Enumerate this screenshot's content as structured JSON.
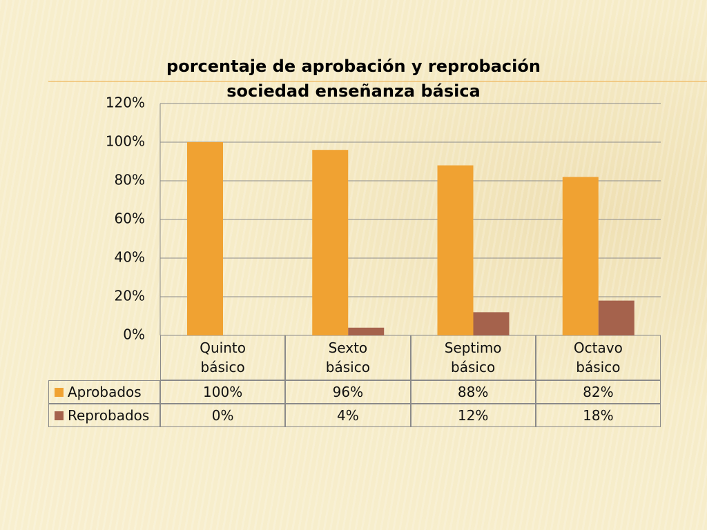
{
  "chart_data": {
    "type": "bar",
    "title": "porcentaje de aprobación y reprobación sociedad enseñanza básica",
    "categories": [
      "Quinto básico",
      "Sexto básico",
      "Septimo básico",
      "Octavo básico"
    ],
    "series": [
      {
        "name": "Aprobados",
        "color": "#f0a232",
        "values": [
          100,
          96,
          88,
          82
        ],
        "value_labels": [
          "100%",
          "96%",
          "88%",
          "82%"
        ]
      },
      {
        "name": "Reprobados",
        "color": "#a5624c",
        "values": [
          0,
          4,
          12,
          18
        ],
        "value_labels": [
          "0%",
          "4%",
          "12%",
          "18%"
        ]
      }
    ],
    "ylim": [
      0,
      120
    ],
    "yticks": [
      {
        "value": 0,
        "label": "0%"
      },
      {
        "value": 20,
        "label": "20%"
      },
      {
        "value": 40,
        "label": "40%"
      },
      {
        "value": 60,
        "label": "60%"
      },
      {
        "value": 80,
        "label": "80%"
      },
      {
        "value": 100,
        "label": "100%"
      },
      {
        "value": 120,
        "label": "120%"
      }
    ],
    "grid": true
  }
}
